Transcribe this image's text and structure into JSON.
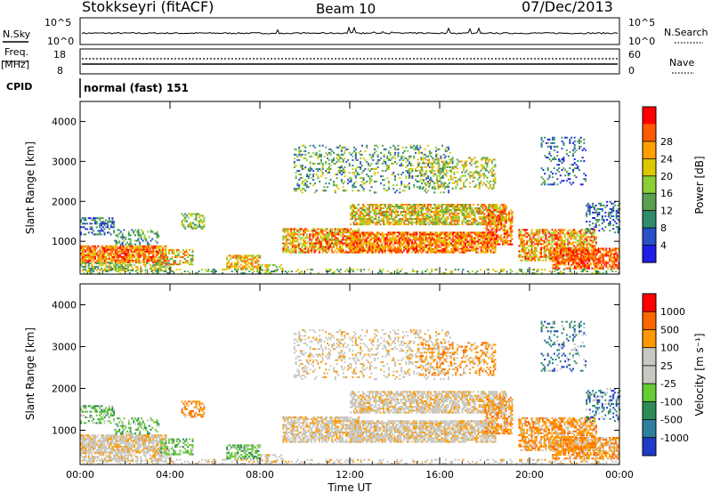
{
  "header": {
    "station": "Stokkseyri (fitACF)",
    "beam": "Beam 10",
    "date": "07/Dec/2013"
  },
  "top_panels": {
    "nsky_label": "N.Sky",
    "nsky_ticks": [
      "10^5",
      "10^0"
    ],
    "nsearch_label": "N.Search",
    "nsearch_ticks": [
      "10^5",
      "10^0"
    ],
    "freq_label": "Freq.",
    "freq_unit": "[MHz]",
    "freq_ticks": [
      "18",
      "8"
    ],
    "nave_label": "Nave",
    "nave_ticks": [
      "60",
      "0"
    ],
    "cpid_label": "CPID",
    "cpid_value": "normal (fast) 151"
  },
  "chart_data": [
    {
      "type": "heatmap",
      "name": "power",
      "ylabel": "Slant Range [km]",
      "ylim": [
        180,
        4500
      ],
      "yticks": [
        "1000",
        "2000",
        "3000",
        "4000"
      ],
      "xlim": [
        "00:00",
        "24:00"
      ],
      "colorbar_label": "Power [dB]",
      "colorbar_ticks": [
        "4",
        "8",
        "12",
        "16",
        "20",
        "24",
        "28"
      ],
      "colors": [
        "#1e1ee6",
        "#2850c8",
        "#2e8b6e",
        "#5aa050",
        "#8ccf32",
        "#dcc800",
        "#ffa000",
        "#ff5a00",
        "#ff0000"
      ]
    },
    {
      "type": "heatmap",
      "name": "velocity",
      "ylabel": "Slant Range [km]",
      "ylim": [
        180,
        4500
      ],
      "yticks": [
        "1000",
        "2000",
        "3000",
        "4000"
      ],
      "xlim": [
        "00:00",
        "24:00"
      ],
      "xlabel": "Time UT",
      "xticks": [
        "00:00",
        "04:00",
        "08:00",
        "12:00",
        "16:00",
        "20:00",
        "00:00"
      ],
      "colorbar_label": "Velocity [m s⁻¹]",
      "colorbar_ticks": [
        "1000",
        "500",
        "100",
        "25",
        "-25",
        "-100",
        "-500",
        "-1000"
      ],
      "colors": [
        "#1e3cc8",
        "#2e7fa0",
        "#2e8b57",
        "#66cc33",
        "#c8c8c0",
        "#c8c8c0",
        "#ff9900",
        "#ff6600",
        "#ff0000"
      ]
    }
  ]
}
